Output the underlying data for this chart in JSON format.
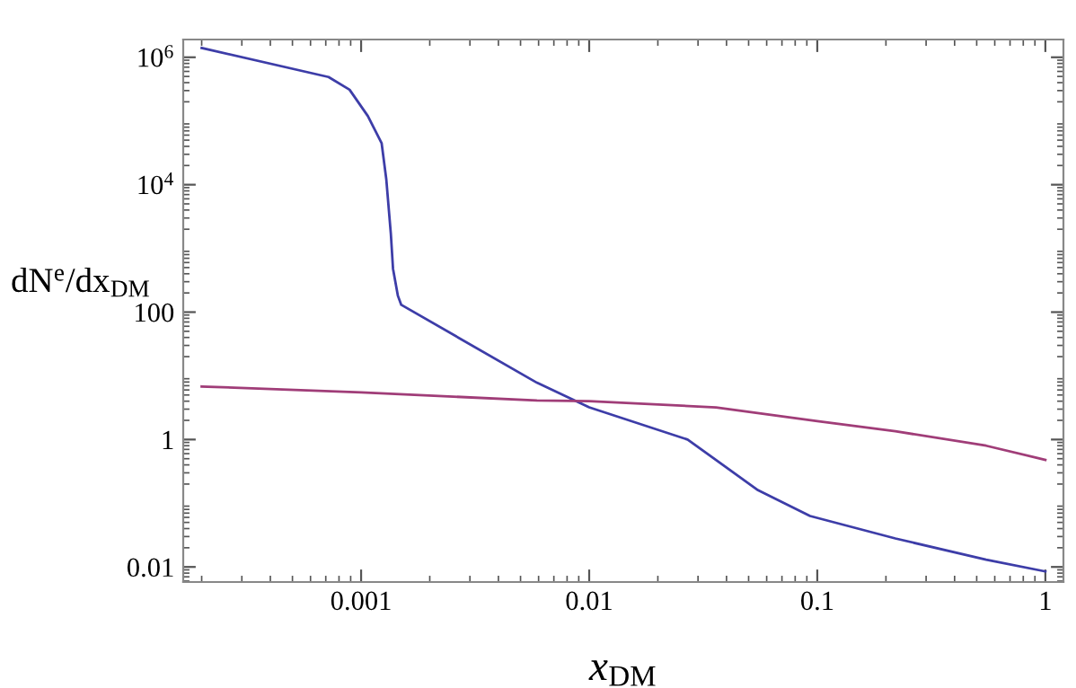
{
  "chart_data": {
    "type": "line",
    "xlabel": "x$_{DM}$",
    "ylabel": "dN$^{e}$/dx$_{DM}$",
    "log": "xy",
    "grid": false,
    "legend": false,
    "xlim": [
      0.000166,
      1.2
    ],
    "ylim": [
      0.0058,
      1900000
    ],
    "xticks": [
      0.001,
      0.01,
      0.1,
      1
    ],
    "yticks": [
      0.01,
      1,
      100,
      {
        "value": 10000,
        "label": "10$^{4}$"
      },
      {
        "value": 1000000,
        "label": "10$^{6}$"
      }
    ],
    "series": [
      {
        "color": "#3d3da8",
        "x": [
          0.0002,
          0.00072,
          0.00089,
          0.00107,
          0.00123,
          0.00129,
          0.00135,
          0.00138,
          0.00145,
          0.0015,
          0.0059,
          0.01,
          0.027,
          0.055,
          0.093,
          0.22,
          0.55,
          1.0
        ],
        "values": [
          1400000,
          490000,
          310000,
          120000,
          45000,
          12000,
          1700,
          480,
          180,
          130,
          7.8,
          3.2,
          1.0,
          0.16,
          0.063,
          0.028,
          0.013,
          0.0085
        ]
      },
      {
        "color": "#a03d78",
        "x": [
          0.0002,
          0.001,
          0.0059,
          0.01,
          0.036,
          0.1,
          0.22,
          0.55,
          1.0
        ],
        "values": [
          6.8,
          5.5,
          4.1,
          4.0,
          3.2,
          1.95,
          1.35,
          0.8,
          0.48
        ]
      }
    ]
  }
}
